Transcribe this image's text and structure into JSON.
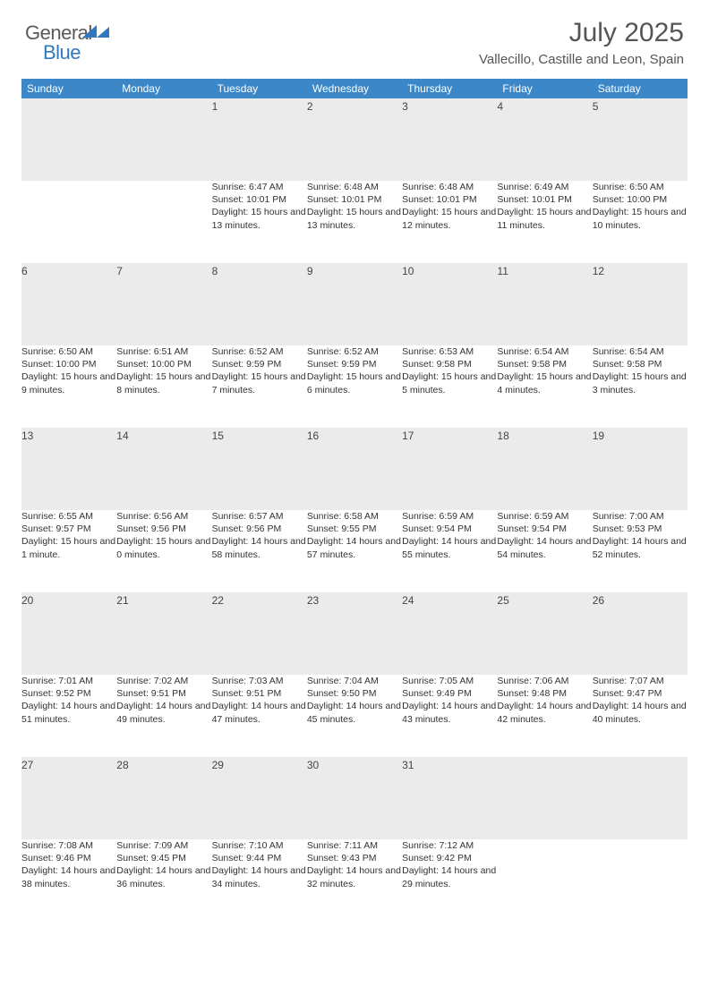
{
  "brand": {
    "part1": "General",
    "part2": "Blue"
  },
  "title": "July 2025",
  "location": "Vallecillo, Castille and Leon, Spain",
  "header_bg": "#3b87c8",
  "accent": "#2f78bd",
  "daynum_bg": "#ebebeb",
  "day_headers": [
    "Sunday",
    "Monday",
    "Tuesday",
    "Wednesday",
    "Thursday",
    "Friday",
    "Saturday"
  ],
  "weeks": [
    [
      null,
      null,
      {
        "n": "1",
        "sr": "6:47 AM",
        "ss": "10:01 PM",
        "dl": "15 hours and 13 minutes."
      },
      {
        "n": "2",
        "sr": "6:48 AM",
        "ss": "10:01 PM",
        "dl": "15 hours and 13 minutes."
      },
      {
        "n": "3",
        "sr": "6:48 AM",
        "ss": "10:01 PM",
        "dl": "15 hours and 12 minutes."
      },
      {
        "n": "4",
        "sr": "6:49 AM",
        "ss": "10:01 PM",
        "dl": "15 hours and 11 minutes."
      },
      {
        "n": "5",
        "sr": "6:50 AM",
        "ss": "10:00 PM",
        "dl": "15 hours and 10 minutes."
      }
    ],
    [
      {
        "n": "6",
        "sr": "6:50 AM",
        "ss": "10:00 PM",
        "dl": "15 hours and 9 minutes."
      },
      {
        "n": "7",
        "sr": "6:51 AM",
        "ss": "10:00 PM",
        "dl": "15 hours and 8 minutes."
      },
      {
        "n": "8",
        "sr": "6:52 AM",
        "ss": "9:59 PM",
        "dl": "15 hours and 7 minutes."
      },
      {
        "n": "9",
        "sr": "6:52 AM",
        "ss": "9:59 PM",
        "dl": "15 hours and 6 minutes."
      },
      {
        "n": "10",
        "sr": "6:53 AM",
        "ss": "9:58 PM",
        "dl": "15 hours and 5 minutes."
      },
      {
        "n": "11",
        "sr": "6:54 AM",
        "ss": "9:58 PM",
        "dl": "15 hours and 4 minutes."
      },
      {
        "n": "12",
        "sr": "6:54 AM",
        "ss": "9:58 PM",
        "dl": "15 hours and 3 minutes."
      }
    ],
    [
      {
        "n": "13",
        "sr": "6:55 AM",
        "ss": "9:57 PM",
        "dl": "15 hours and 1 minute."
      },
      {
        "n": "14",
        "sr": "6:56 AM",
        "ss": "9:56 PM",
        "dl": "15 hours and 0 minutes."
      },
      {
        "n": "15",
        "sr": "6:57 AM",
        "ss": "9:56 PM",
        "dl": "14 hours and 58 minutes."
      },
      {
        "n": "16",
        "sr": "6:58 AM",
        "ss": "9:55 PM",
        "dl": "14 hours and 57 minutes."
      },
      {
        "n": "17",
        "sr": "6:59 AM",
        "ss": "9:54 PM",
        "dl": "14 hours and 55 minutes."
      },
      {
        "n": "18",
        "sr": "6:59 AM",
        "ss": "9:54 PM",
        "dl": "14 hours and 54 minutes."
      },
      {
        "n": "19",
        "sr": "7:00 AM",
        "ss": "9:53 PM",
        "dl": "14 hours and 52 minutes."
      }
    ],
    [
      {
        "n": "20",
        "sr": "7:01 AM",
        "ss": "9:52 PM",
        "dl": "14 hours and 51 minutes."
      },
      {
        "n": "21",
        "sr": "7:02 AM",
        "ss": "9:51 PM",
        "dl": "14 hours and 49 minutes."
      },
      {
        "n": "22",
        "sr": "7:03 AM",
        "ss": "9:51 PM",
        "dl": "14 hours and 47 minutes."
      },
      {
        "n": "23",
        "sr": "7:04 AM",
        "ss": "9:50 PM",
        "dl": "14 hours and 45 minutes."
      },
      {
        "n": "24",
        "sr": "7:05 AM",
        "ss": "9:49 PM",
        "dl": "14 hours and 43 minutes."
      },
      {
        "n": "25",
        "sr": "7:06 AM",
        "ss": "9:48 PM",
        "dl": "14 hours and 42 minutes."
      },
      {
        "n": "26",
        "sr": "7:07 AM",
        "ss": "9:47 PM",
        "dl": "14 hours and 40 minutes."
      }
    ],
    [
      {
        "n": "27",
        "sr": "7:08 AM",
        "ss": "9:46 PM",
        "dl": "14 hours and 38 minutes."
      },
      {
        "n": "28",
        "sr": "7:09 AM",
        "ss": "9:45 PM",
        "dl": "14 hours and 36 minutes."
      },
      {
        "n": "29",
        "sr": "7:10 AM",
        "ss": "9:44 PM",
        "dl": "14 hours and 34 minutes."
      },
      {
        "n": "30",
        "sr": "7:11 AM",
        "ss": "9:43 PM",
        "dl": "14 hours and 32 minutes."
      },
      {
        "n": "31",
        "sr": "7:12 AM",
        "ss": "9:42 PM",
        "dl": "14 hours and 29 minutes."
      },
      null,
      null
    ]
  ],
  "labels": {
    "sunrise": "Sunrise:",
    "sunset": "Sunset:",
    "daylight": "Daylight:"
  }
}
